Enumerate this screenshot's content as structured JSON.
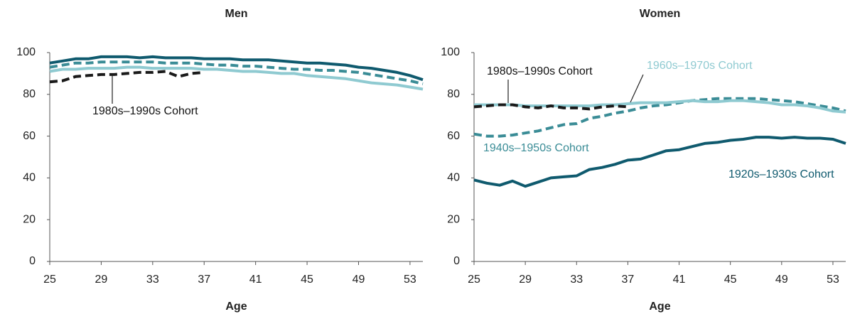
{
  "chart_data": [
    {
      "type": "line",
      "title": "Men",
      "x_label": "Age",
      "x": [
        25,
        26,
        27,
        28,
        29,
        30,
        31,
        32,
        33,
        34,
        35,
        36,
        37,
        38,
        39,
        40,
        41,
        42,
        43,
        44,
        45,
        46,
        47,
        48,
        49,
        50,
        51,
        52,
        53,
        54
      ],
      "xlim": [
        25,
        54
      ],
      "xticks": [
        25,
        29,
        33,
        37,
        41,
        45,
        49,
        53
      ],
      "ylim": [
        0,
        100
      ],
      "yticks": [
        0,
        20,
        40,
        60,
        80,
        100
      ],
      "series": [
        {
          "color": "#0f5a6e",
          "dashed": false,
          "values": [
            95,
            96,
            97,
            97,
            98,
            98,
            98,
            97.5,
            98,
            97.5,
            97.5,
            97.5,
            97,
            97,
            97,
            96.5,
            96.5,
            96.5,
            96,
            95.5,
            95,
            95,
            94.5,
            94,
            93,
            92.5,
            91.5,
            90.5,
            89,
            87
          ]
        },
        {
          "color": "#3a8c96",
          "dashed": true,
          "values": [
            93,
            94,
            95,
            95,
            95.5,
            95.5,
            95.5,
            95.5,
            95.5,
            95,
            95,
            95,
            94.5,
            94,
            94,
            93.5,
            93.5,
            93,
            92.5,
            92,
            92,
            91.5,
            91.5,
            91,
            90.5,
            89.5,
            88.5,
            87.5,
            86.5,
            85
          ]
        },
        {
          "color": "#8fcad1",
          "dashed": false,
          "values": [
            91,
            92,
            92,
            92.5,
            92.5,
            92.5,
            93,
            93,
            92.5,
            92.5,
            92.5,
            92.5,
            92,
            92,
            91.5,
            91,
            91,
            90.5,
            90,
            90,
            89,
            88.5,
            88,
            87.5,
            86.5,
            85.5,
            85,
            84.5,
            83.5,
            82.5
          ]
        },
        {
          "name": "1980s–1990s Cohort",
          "color": "#1a1a1a",
          "dashed": true,
          "values": [
            86,
            86.5,
            88.5,
            89,
            89.5,
            89.5,
            90,
            90.5,
            90.5,
            91,
            88.5,
            90,
            90.5,
            null,
            null,
            null,
            null,
            null,
            null,
            null,
            null,
            null,
            null,
            null,
            null,
            null,
            null,
            null,
            null,
            null
          ]
        }
      ]
    },
    {
      "type": "line",
      "title": "Women",
      "x_label": "Age",
      "x": [
        25,
        26,
        27,
        28,
        29,
        30,
        31,
        32,
        33,
        34,
        35,
        36,
        37,
        38,
        39,
        40,
        41,
        42,
        43,
        44,
        45,
        46,
        47,
        48,
        49,
        50,
        51,
        52,
        53,
        54
      ],
      "xlim": [
        25,
        54
      ],
      "xticks": [
        25,
        29,
        33,
        37,
        41,
        45,
        49,
        53
      ],
      "ylim": [
        0,
        100
      ],
      "yticks": [
        0,
        20,
        40,
        60,
        80,
        100
      ],
      "series": [
        {
          "name": "1920s–1930s Cohort",
          "color": "#0f5a6e",
          "dashed": false,
          "values": [
            39,
            37.5,
            36.5,
            38.5,
            36,
            38,
            40,
            40.5,
            41,
            44,
            45,
            46.5,
            48.5,
            49,
            51,
            53,
            53.5,
            55,
            56.5,
            57,
            58,
            58.5,
            59.5,
            59.5,
            59,
            59.5,
            59,
            59,
            58.5,
            56.5
          ]
        },
        {
          "name": "1940s–1950s Cohort",
          "color": "#3a8c96",
          "dashed": true,
          "values": [
            61,
            60,
            60,
            60.5,
            61.5,
            62.5,
            64,
            65.5,
            66,
            68.5,
            69.5,
            71,
            72,
            73.5,
            74.5,
            75,
            76,
            77,
            77.5,
            78,
            78,
            78,
            78,
            77.5,
            77,
            76.5,
            75.5,
            74.5,
            73.5,
            72
          ]
        },
        {
          "name": "1960s–1970s Cohort",
          "color": "#8fcad1",
          "dashed": false,
          "values": [
            75,
            75,
            75,
            75,
            74.5,
            74.5,
            74.5,
            74.5,
            74.5,
            74.5,
            75,
            75,
            75.5,
            76,
            76,
            76,
            76.5,
            77,
            76.5,
            76.5,
            77,
            77,
            76.5,
            76,
            75,
            75,
            74.5,
            73.5,
            72,
            71.5
          ]
        },
        {
          "name": "1980s–1990s Cohort",
          "color": "#1a1a1a",
          "dashed": true,
          "values": [
            74,
            74.5,
            75,
            75,
            74,
            73.5,
            74.5,
            73.5,
            73.5,
            73,
            74,
            74.5,
            74,
            null,
            null,
            null,
            null,
            null,
            null,
            null,
            null,
            null,
            null,
            null,
            null,
            null,
            null,
            null,
            null,
            null
          ]
        }
      ]
    }
  ]
}
